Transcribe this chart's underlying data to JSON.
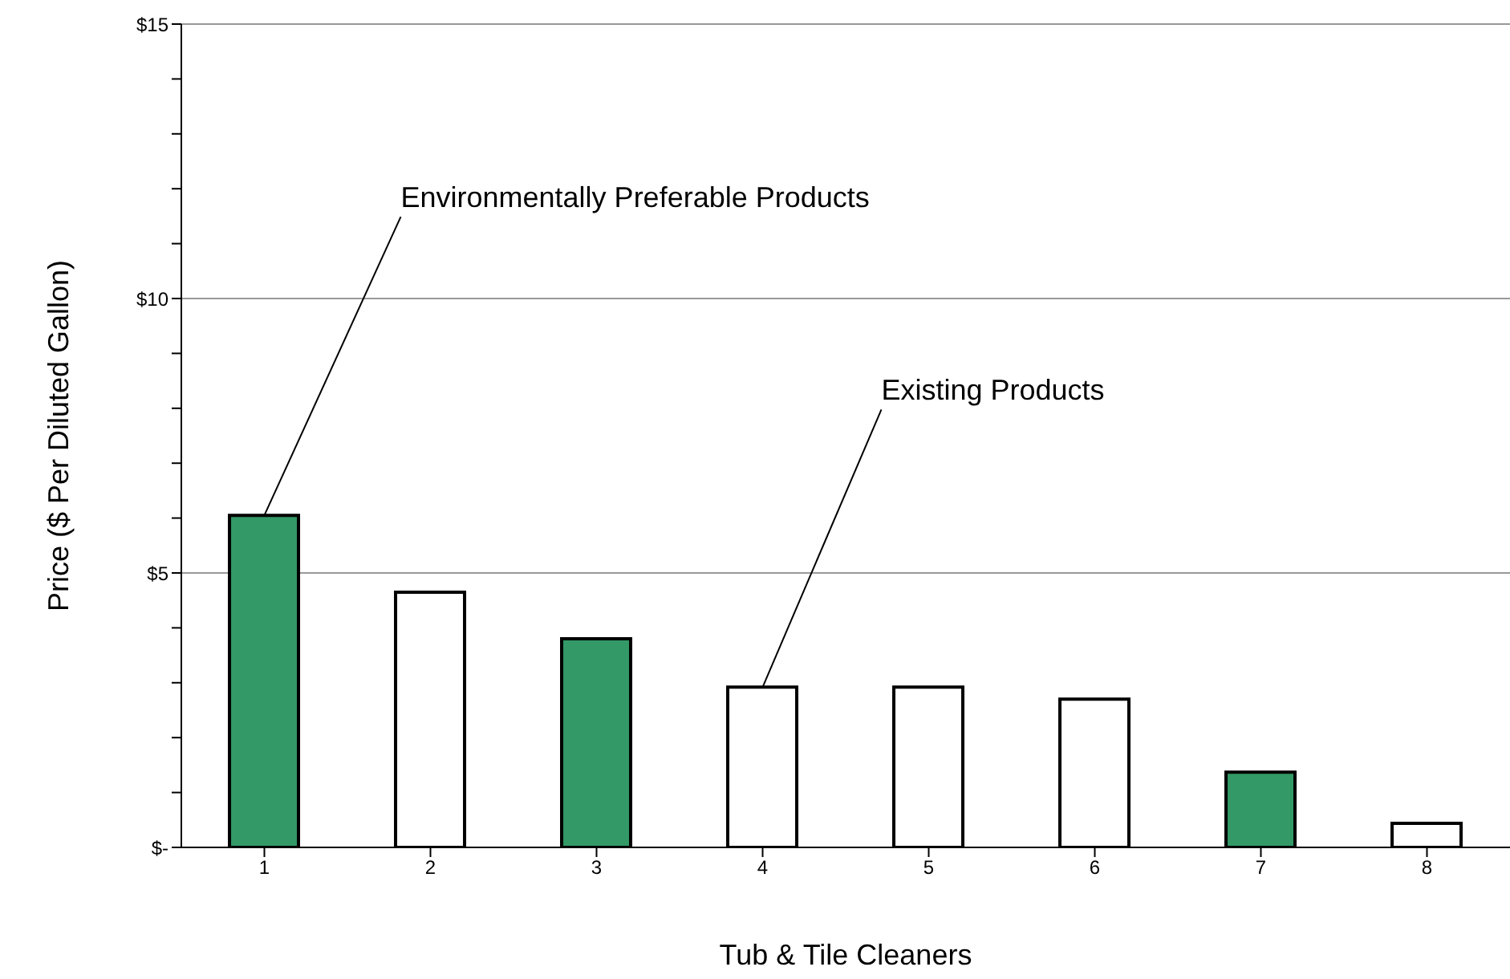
{
  "chart_data": {
    "type": "bar",
    "xlabel": "Tub & Tile Cleaners",
    "ylabel": "Price ($ Per Diluted Gallon)",
    "categories": [
      "1",
      "2",
      "3",
      "4",
      "5",
      "6",
      "7",
      "8"
    ],
    "values": [
      6.05,
      4.65,
      3.8,
      2.92,
      2.92,
      2.7,
      1.37,
      0.44
    ],
    "colors": [
      "#339966",
      "#ffffff",
      "#339966",
      "#ffffff",
      "#ffffff",
      "#ffffff",
      "#339966",
      "#ffffff"
    ],
    "ylim": [
      0,
      15
    ],
    "yticks": [
      {
        "value": 0,
        "label": "$-"
      },
      {
        "value": 1,
        "label": null
      },
      {
        "value": 2,
        "label": null
      },
      {
        "value": 3,
        "label": null
      },
      {
        "value": 4,
        "label": null
      },
      {
        "value": 5,
        "label": "$5"
      },
      {
        "value": 6,
        "label": null
      },
      {
        "value": 7,
        "label": null
      },
      {
        "value": 8,
        "label": null
      },
      {
        "value": 9,
        "label": null
      },
      {
        "value": 10,
        "label": "$10"
      },
      {
        "value": 11,
        "label": null
      },
      {
        "value": 12,
        "label": null
      },
      {
        "value": 13,
        "label": null
      },
      {
        "value": 14,
        "label": null
      },
      {
        "value": 15,
        "label": "$15"
      }
    ],
    "grid": "y",
    "annotations": [
      {
        "text": "Environmentally Preferable Products",
        "x": "1",
        "y": 6.05
      },
      {
        "text": "Existing Products",
        "x": "4",
        "y": 2.92
      }
    ]
  }
}
